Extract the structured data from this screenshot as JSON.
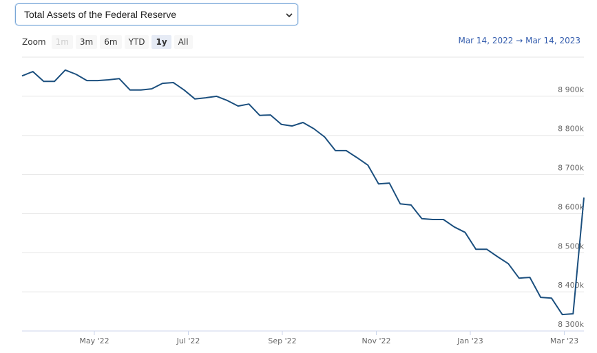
{
  "selector": {
    "label": "Total Assets of the Federal Reserve"
  },
  "range_selector": {
    "zoom_label": "Zoom",
    "buttons": [
      "1m",
      "3m",
      "6m",
      "YTD",
      "1y",
      "All"
    ],
    "selected_index": 4,
    "disabled_index": 0,
    "from": "Mar 14, 2022",
    "separator": "→",
    "to": "Mar 14, 2023"
  },
  "chart_data": {
    "type": "line",
    "xticks": [
      "May '22",
      "Jul '22",
      "Sep '22",
      "Nov '22",
      "Jan '23",
      "Mar '23"
    ],
    "series": [
      {
        "name": "Total Assets of the Federal Reserve",
        "color": "#1b4f7e",
        "values": [
          8952000,
          8963000,
          8938000,
          8938000,
          8967000,
          8956000,
          8940000,
          8940000,
          8942000,
          8945000,
          8916000,
          8916000,
          8919000,
          8933000,
          8935000,
          8916000,
          8893000,
          8896000,
          8900000,
          8889000,
          8875000,
          8880000,
          8851000,
          8852000,
          8828000,
          8824000,
          8833000,
          8817000,
          8796000,
          8761000,
          8761000,
          8743000,
          8724000,
          8676000,
          8678000,
          8625000,
          8622000,
          8587000,
          8585000,
          8585000,
          8566000,
          8552000,
          8509000,
          8509000,
          8490000,
          8472000,
          8435000,
          8437000,
          8386000,
          8384000,
          8342000,
          8344000,
          8641000
        ]
      }
    ],
    "ylim": [
      8300000,
      9000000
    ],
    "yticks": [
      {
        "value": 8300000,
        "label": "8 300k"
      },
      {
        "value": 8400000,
        "label": "8 400k"
      },
      {
        "value": 8500000,
        "label": "8 500k"
      },
      {
        "value": 8600000,
        "label": "8 600k"
      },
      {
        "value": 8700000,
        "label": "8 700k"
      },
      {
        "value": 8800000,
        "label": "8 800k"
      },
      {
        "value": 8900000,
        "label": "8 900k"
      }
    ],
    "grid": true
  }
}
